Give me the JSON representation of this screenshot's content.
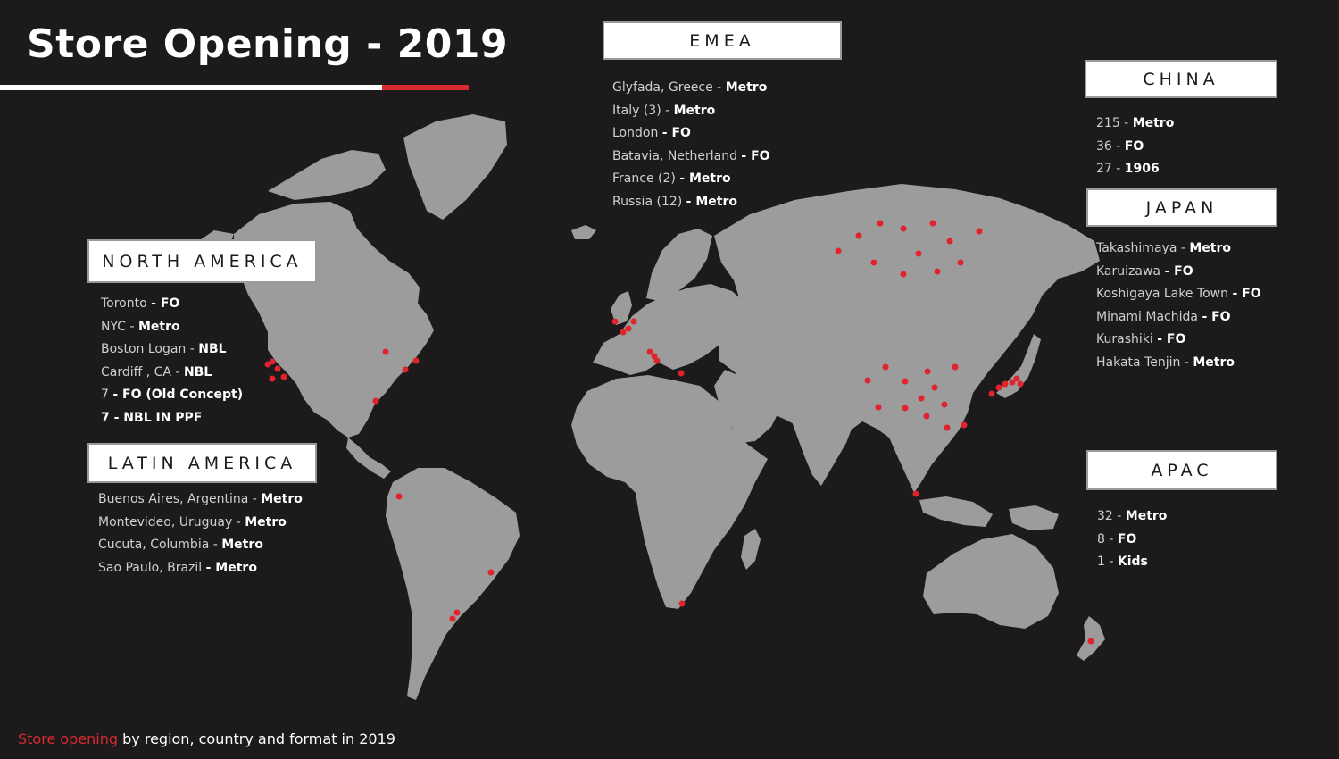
{
  "title": "Store Opening - 2019",
  "footer": {
    "highlight": "Store opening",
    "rest": " by region, country and format in 2019"
  },
  "colors": {
    "background": "#1c1a1b",
    "land": "#9c9c9c",
    "marker": "#e0232c",
    "accent": "#d82a31"
  },
  "regions": {
    "emea": {
      "label": "EMEA",
      "items": [
        {
          "text": "Glyfada, Greece - ",
          "format": "Metro"
        },
        {
          "text": "Italy (3) - ",
          "format": "Metro"
        },
        {
          "text": "London ",
          "format": "- FO"
        },
        {
          "text": "Batavia, Netherland ",
          "format": "- FO"
        },
        {
          "text": "France (2) ",
          "format": "- Metro"
        },
        {
          "text": "Russia  (12) ",
          "format": "- Metro"
        }
      ]
    },
    "china": {
      "label": "CHINA",
      "items": [
        {
          "text": "215 - ",
          "format": "Metro"
        },
        {
          "text": "36 - ",
          "format": "FO"
        },
        {
          "text": "27 - ",
          "format": "1906"
        }
      ]
    },
    "japan": {
      "label": "JAPAN",
      "items": [
        {
          "text": "Takashimaya -  ",
          "format": "Metro"
        },
        {
          "text": "Karuizawa ",
          "format": "- FO"
        },
        {
          "text": "Koshigaya Lake Town ",
          "format": "- FO"
        },
        {
          "text": "Minami Machida ",
          "format": "- FO"
        },
        {
          "text": "Kurashiki ",
          "format": "- FO"
        },
        {
          "text": "Hakata Tenjin - ",
          "format": "Metro"
        }
      ]
    },
    "north_america": {
      "label": "NORTH AMERICA",
      "items": [
        {
          "text": "Toronto ",
          "format": "- FO"
        },
        {
          "text": "NYC - ",
          "format": "Metro"
        },
        {
          "text": "Boston Logan - ",
          "format": "NBL"
        },
        {
          "text": "Cardiff , CA  -  ",
          "format": "NBL"
        },
        {
          "text": "7 ",
          "format": "- FO (Old Concept)"
        },
        {
          "text": "",
          "format": "7 - NBL IN PPF"
        }
      ]
    },
    "latin_america": {
      "label": "LATIN AMERICA",
      "items": [
        {
          "text": "Buenos Aires, Argentina - ",
          "format": "Metro"
        },
        {
          "text": "Montevideo, Uruguay - ",
          "format": "Metro"
        },
        {
          "text": "Cucuta, Columbia -  ",
          "format": "Metro"
        },
        {
          "text": "Sao Paulo, Brazil ",
          "format": "- Metro"
        }
      ]
    },
    "apac": {
      "label": "APAC",
      "items": [
        {
          "text": "32 - ",
          "format": "Metro"
        },
        {
          "text": "8 - ",
          "format": "FO"
        },
        {
          "text": "1 - ",
          "format": "Kids"
        }
      ]
    }
  }
}
